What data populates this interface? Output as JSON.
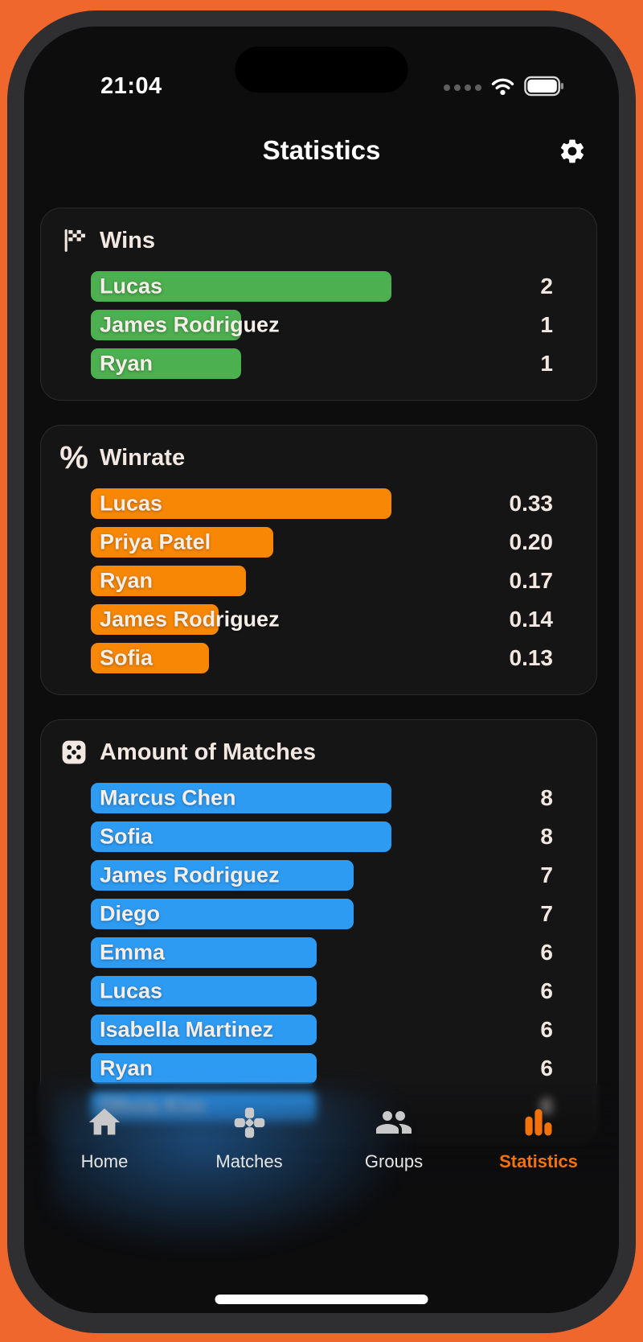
{
  "status_bar": {
    "time": "21:04",
    "cellular_icon": "cellular-dots-icon",
    "wifi_icon": "wifi-icon",
    "battery_icon": "battery-full-icon"
  },
  "header": {
    "title": "Statistics",
    "settings_icon": "gear-icon"
  },
  "cards": [
    {
      "title": "Wins",
      "icon": "checkered-flag-icon",
      "color": "#4CAF50",
      "max": 2,
      "rows": [
        {
          "name": "Lucas",
          "display": "2",
          "value": 2
        },
        {
          "name": "James Rodriguez",
          "display": "1",
          "value": 1
        },
        {
          "name": "Ryan",
          "display": "1",
          "value": 1
        }
      ]
    },
    {
      "title": "Winrate",
      "icon": "percent-icon",
      "color": "#F78705",
      "max": 0.33,
      "rows": [
        {
          "name": "Lucas",
          "display": "0.33",
          "value": 0.33
        },
        {
          "name": "Priya Patel",
          "display": "0.20",
          "value": 0.2
        },
        {
          "name": "Ryan",
          "display": "0.17",
          "value": 0.17
        },
        {
          "name": "James Rodriguez",
          "display": "0.14",
          "value": 0.14
        },
        {
          "name": "Sofia",
          "display": "0.13",
          "value": 0.13
        }
      ]
    },
    {
      "title": "Amount of Matches",
      "icon": "dice-icon",
      "color": "#2E9BF3",
      "max": 8,
      "rows": [
        {
          "name": "Marcus Chen",
          "display": "8",
          "value": 8
        },
        {
          "name": "Sofia",
          "display": "8",
          "value": 8
        },
        {
          "name": "James Rodriguez",
          "display": "7",
          "value": 7
        },
        {
          "name": "Diego",
          "display": "7",
          "value": 7
        },
        {
          "name": "Emma",
          "display": "6",
          "value": 6
        },
        {
          "name": "Lucas",
          "display": "6",
          "value": 6
        },
        {
          "name": "Isabella Martinez",
          "display": "6",
          "value": 6
        },
        {
          "name": "Ryan",
          "display": "6",
          "value": 6
        },
        {
          "name": "Olivia Kim",
          "display": "6",
          "value": 6,
          "blurred": true
        }
      ]
    }
  ],
  "chart_data": [
    {
      "type": "bar",
      "orientation": "horizontal",
      "title": "Wins",
      "categories": [
        "Lucas",
        "James Rodriguez",
        "Ryan"
      ],
      "values": [
        2,
        1,
        1
      ]
    },
    {
      "type": "bar",
      "orientation": "horizontal",
      "title": "Winrate",
      "categories": [
        "Lucas",
        "Priya Patel",
        "Ryan",
        "James Rodriguez",
        "Sofia"
      ],
      "values": [
        0.33,
        0.2,
        0.17,
        0.14,
        0.13
      ]
    },
    {
      "type": "bar",
      "orientation": "horizontal",
      "title": "Amount of Matches",
      "categories": [
        "Marcus Chen",
        "Sofia",
        "James Rodriguez",
        "Diego",
        "Emma",
        "Lucas",
        "Isabella Martinez",
        "Ryan",
        "Olivia Kim"
      ],
      "values": [
        8,
        8,
        7,
        7,
        6,
        6,
        6,
        6,
        6
      ]
    }
  ],
  "tab_bar": {
    "items": [
      {
        "label": "Home",
        "icon": "home-icon",
        "active": false
      },
      {
        "label": "Matches",
        "icon": "dpad-icon",
        "active": false
      },
      {
        "label": "Groups",
        "icon": "groups-icon",
        "active": false
      },
      {
        "label": "Statistics",
        "icon": "bar-chart-icon",
        "active": true
      }
    ],
    "active_color": "#F4720A",
    "inactive_color": "#C9C9C9"
  },
  "colors": {
    "phone_background": "#EF672C",
    "screen_background": "#0D0D0E",
    "card_background": "#151516",
    "text": "#F2E8E1",
    "wins_bar": "#4CAF50",
    "winrate_bar": "#F78705",
    "matches_bar": "#2E9BF3"
  }
}
